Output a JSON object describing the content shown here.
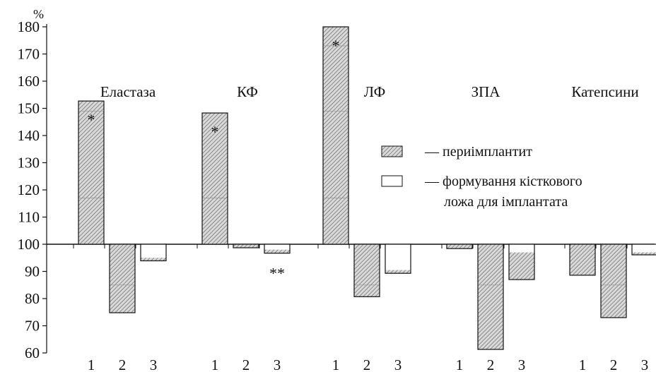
{
  "chart_data": {
    "type": "bar",
    "ylabel": "%",
    "ylim": [
      60,
      180
    ],
    "yticks": [
      60,
      70,
      80,
      90,
      100,
      110,
      120,
      130,
      140,
      150,
      160,
      170,
      180
    ],
    "baseline": 100,
    "grid": false,
    "groups": [
      {
        "name": "Еластаза",
        "categories": [
          "1",
          "2",
          "3"
        ],
        "values": [
          152.7,
          74.8,
          93.9
        ],
        "fill_level": [
          null,
          null,
          95.0
        ],
        "annotations": [
          "*",
          "",
          ""
        ]
      },
      {
        "name": "КФ",
        "categories": [
          "1",
          "2",
          "3"
        ],
        "values": [
          148.3,
          98.7,
          96.7
        ],
        "fill_level": [
          null,
          null,
          98.0
        ],
        "annotations": [
          "*",
          "",
          "**"
        ]
      },
      {
        "name": "ЛФ",
        "categories": [
          "1",
          "2",
          "3"
        ],
        "values": [
          180.0,
          80.7,
          89.3
        ],
        "fill_level": [
          null,
          null,
          90.5
        ],
        "annotations": [
          "*",
          "",
          ""
        ]
      },
      {
        "name": "ЗПА",
        "categories": [
          "1",
          "2",
          "3"
        ],
        "values": [
          98.4,
          61.3,
          87.0
        ],
        "fill_level": [
          null,
          null,
          97.0
        ],
        "annotations": [
          "",
          "",
          ""
        ]
      },
      {
        "name": "Катепсини",
        "categories": [
          "1",
          "2",
          "3"
        ],
        "values": [
          88.6,
          73.0,
          96.1
        ],
        "fill_level": [
          null,
          null,
          97.0
        ],
        "annotations": [
          "",
          "",
          ""
        ]
      }
    ],
    "legend": {
      "placement": "right",
      "entries": [
        {
          "symbol": "hatched",
          "label": "— периімплантит"
        },
        {
          "symbol": "empty",
          "label": "— формування кісткового",
          "label2": "ложа для імплантата"
        }
      ]
    }
  }
}
